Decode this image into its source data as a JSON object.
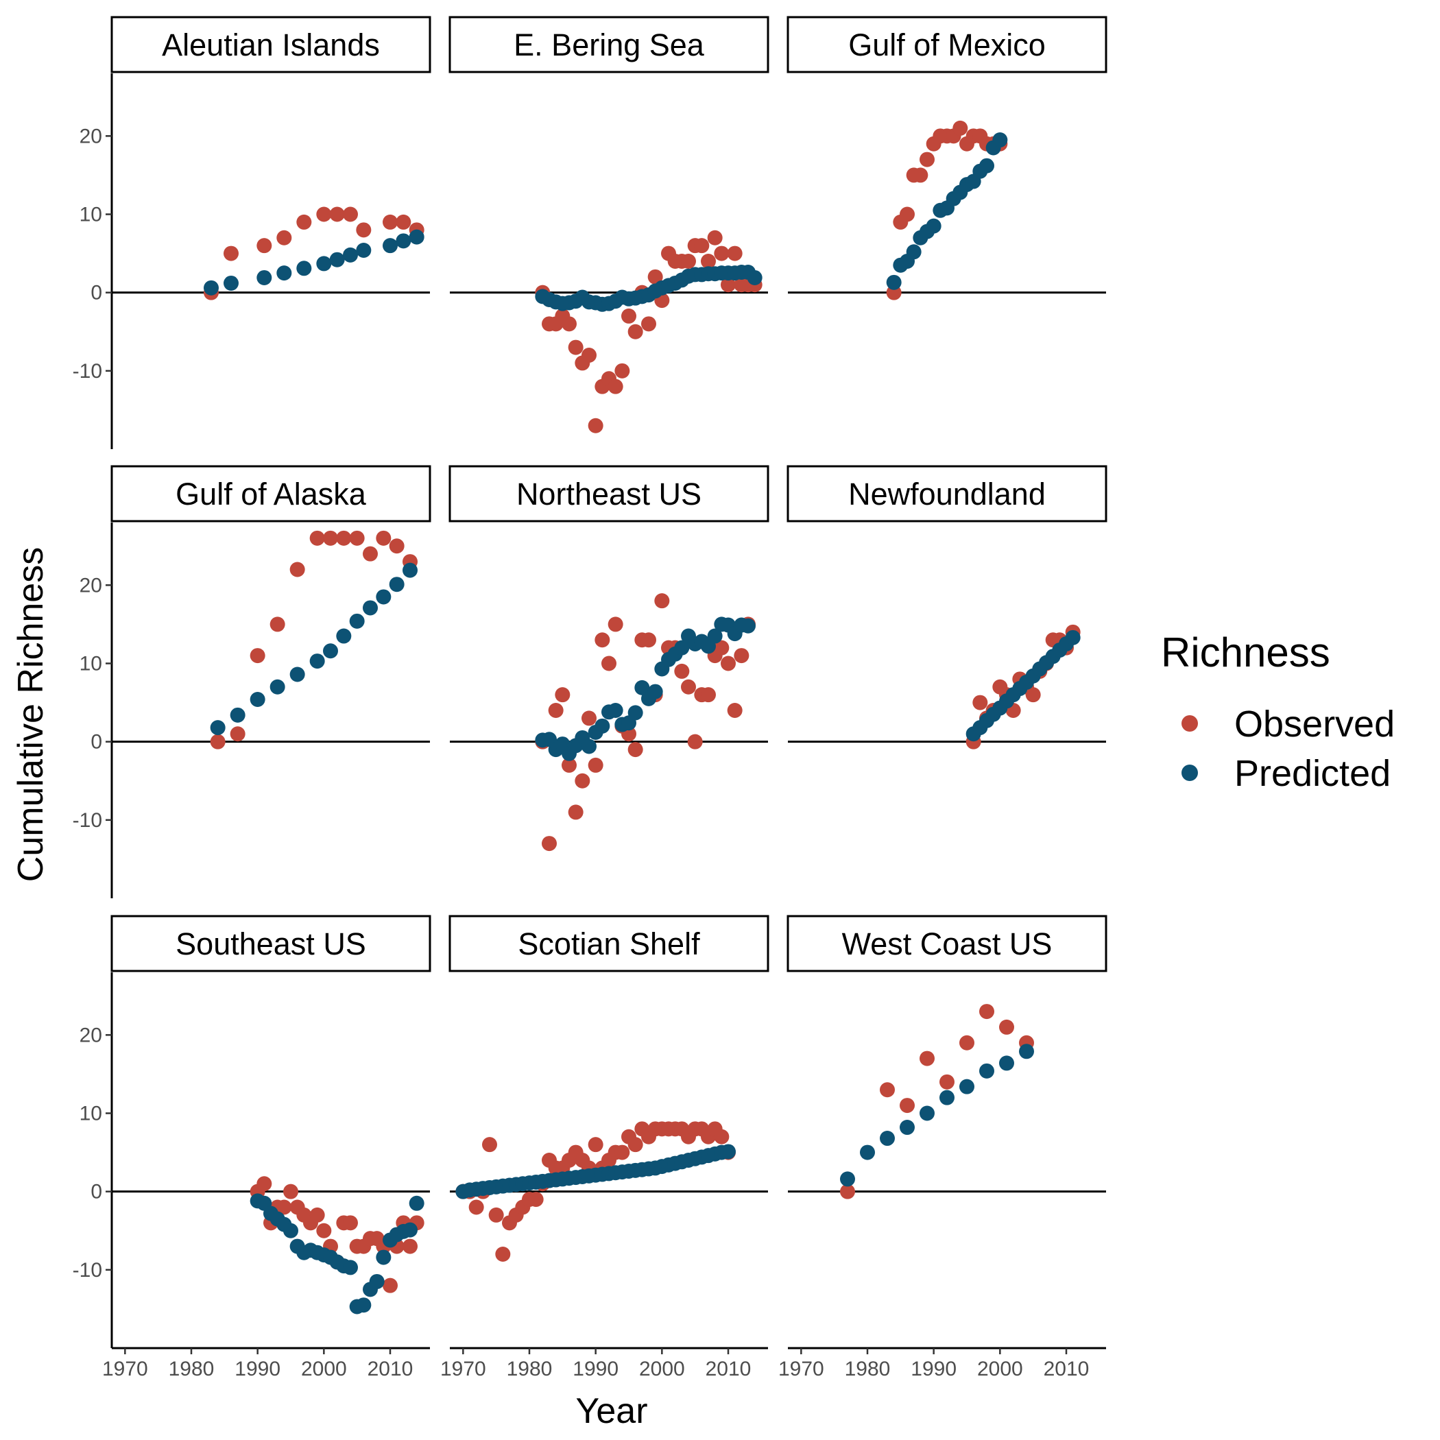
{
  "chart_data": {
    "type": "scatter",
    "title": "",
    "xlabel": "Year",
    "ylabel": "Cumulative Richness",
    "xlim": [
      1968,
      2016
    ],
    "ylim": [
      -20,
      28
    ],
    "x_ticks": [
      1970,
      1980,
      1990,
      2000,
      2010
    ],
    "y_ticks": [
      -10,
      0,
      10,
      20
    ],
    "grid": false,
    "legend": {
      "title": "Richness",
      "position": "right",
      "entries": [
        {
          "name": "Observed",
          "color": "#C0473A"
        },
        {
          "name": "Predicted",
          "color": "#0D5274"
        }
      ]
    },
    "reference_line_y": 0,
    "facets": [
      {
        "label": "Aleutian Islands",
        "observed": {
          "x": [
            1983,
            1986,
            1991,
            1994,
            1997,
            2000,
            2002,
            2004,
            2006,
            2010,
            2012,
            2014
          ],
          "y": [
            0,
            5,
            6,
            7,
            9,
            10,
            10,
            10,
            8,
            9,
            9,
            8
          ]
        },
        "predicted": {
          "x": [
            1983,
            1986,
            1991,
            1994,
            1997,
            2000,
            2002,
            2004,
            2006,
            2010,
            2012,
            2014
          ],
          "y": [
            0.6,
            1.2,
            1.9,
            2.5,
            3.1,
            3.7,
            4.2,
            4.8,
            5.4,
            6.0,
            6.6,
            7.1
          ]
        }
      },
      {
        "label": "E. Bering Sea",
        "observed": {
          "x": [
            1982,
            1983,
            1984,
            1985,
            1986,
            1987,
            1988,
            1989,
            1990,
            1991,
            1992,
            1993,
            1994,
            1995,
            1996,
            1997,
            1998,
            1999,
            2000,
            2001,
            2002,
            2003,
            2004,
            2005,
            2006,
            2007,
            2008,
            2009,
            2010,
            2011,
            2012,
            2013,
            2014
          ],
          "y": [
            0,
            -4,
            -4,
            -3,
            -4,
            -7,
            -9,
            -8,
            -17,
            -12,
            -11,
            -12,
            -10,
            -3,
            -5,
            0,
            -4,
            2,
            -1,
            5,
            4,
            4,
            4,
            6,
            6,
            4,
            7,
            5,
            1,
            5,
            1,
            1,
            1
          ]
        },
        "predicted": {
          "x": [
            1982,
            1983,
            1984,
            1985,
            1986,
            1987,
            1988,
            1989,
            1990,
            1991,
            1992,
            1993,
            1994,
            1995,
            1996,
            1997,
            1998,
            1999,
            2000,
            2001,
            2002,
            2003,
            2004,
            2005,
            2006,
            2007,
            2008,
            2009,
            2010,
            2011,
            2012,
            2013,
            2014
          ],
          "y": [
            -0.5,
            -0.9,
            -1.2,
            -1.4,
            -1.3,
            -1.1,
            -0.6,
            -1.2,
            -1.3,
            -1.5,
            -1.4,
            -1.1,
            -0.6,
            -0.8,
            -0.7,
            -0.5,
            -0.3,
            0.2,
            0.6,
            0.9,
            1.2,
            1.6,
            2.1,
            2.3,
            2.3,
            2.4,
            2.4,
            2.5,
            2.5,
            2.5,
            2.6,
            2.6,
            1.9
          ]
        }
      },
      {
        "label": "Gulf of Mexico",
        "observed": {
          "x": [
            1984,
            1985,
            1986,
            1987,
            1988,
            1989,
            1990,
            1991,
            1992,
            1993,
            1994,
            1995,
            1996,
            1997,
            1998,
            1999,
            2000
          ],
          "y": [
            0,
            9,
            10,
            15,
            15,
            17,
            19,
            20,
            20,
            20,
            21,
            19,
            20,
            20,
            19,
            19,
            19
          ]
        },
        "predicted": {
          "x": [
            1984,
            1985,
            1986,
            1987,
            1988,
            1989,
            1990,
            1991,
            1992,
            1993,
            1994,
            1995,
            1996,
            1997,
            1998,
            1999,
            2000
          ],
          "y": [
            1.3,
            3.5,
            4.0,
            5.2,
            7.0,
            7.8,
            8.5,
            10.5,
            10.8,
            12.0,
            12.8,
            13.8,
            14.2,
            15.5,
            16.2,
            18.5,
            19.5
          ]
        }
      },
      {
        "label": "Gulf of Alaska",
        "observed": {
          "x": [
            1984,
            1987,
            1990,
            1993,
            1996,
            1999,
            2001,
            2003,
            2005,
            2007,
            2009,
            2011,
            2013
          ],
          "y": [
            0,
            1,
            11,
            15,
            22,
            26,
            26,
            26,
            26,
            24,
            26,
            25,
            23
          ]
        },
        "predicted": {
          "x": [
            1984,
            1987,
            1990,
            1993,
            1996,
            1999,
            2001,
            2003,
            2005,
            2007,
            2009,
            2011,
            2013
          ],
          "y": [
            1.8,
            3.4,
            5.4,
            7.0,
            8.6,
            10.3,
            11.6,
            13.5,
            15.4,
            17.1,
            18.5,
            20.1,
            21.9
          ]
        }
      },
      {
        "label": "Northeast US",
        "observed": {
          "x": [
            1982,
            1983,
            1984,
            1985,
            1986,
            1987,
            1988,
            1989,
            1990,
            1991,
            1992,
            1993,
            1994,
            1995,
            1996,
            1997,
            1998,
            1999,
            2000,
            2001,
            2002,
            2003,
            2004,
            2005,
            2006,
            2007,
            2008,
            2009,
            2010,
            2011,
            2012,
            2013
          ],
          "y": [
            0,
            -13,
            4,
            6,
            -3,
            -9,
            -5,
            3,
            -3,
            13,
            10,
            15,
            2,
            1,
            -1,
            13,
            13,
            6,
            18,
            12,
            12,
            9,
            7,
            0,
            6,
            6,
            11,
            12,
            10,
            4,
            11,
            15
          ]
        },
        "predicted": {
          "x": [
            1982,
            1983,
            1984,
            1985,
            1986,
            1987,
            1988,
            1989,
            1990,
            1991,
            1992,
            1993,
            1994,
            1995,
            1996,
            1997,
            1998,
            1999,
            2000,
            2001,
            2002,
            2003,
            2004,
            2005,
            2006,
            2007,
            2008,
            2009,
            2010,
            2011,
            2012,
            2013
          ],
          "y": [
            0.2,
            0.3,
            -1.0,
            -0.3,
            -1.5,
            -0.5,
            0.5,
            -0.6,
            1.2,
            2.0,
            3.8,
            4.0,
            2.2,
            2.4,
            3.7,
            6.9,
            5.5,
            6.4,
            9.3,
            10.5,
            11.2,
            12.0,
            13.5,
            12.5,
            12.8,
            12.2,
            13.5,
            15.0,
            14.9,
            13.8,
            14.9,
            14.8
          ]
        }
      },
      {
        "label": "Newfoundland",
        "observed": {
          "x": [
            1996,
            1997,
            1998,
            1999,
            2000,
            2001,
            2002,
            2003,
            2004,
            2005,
            2006,
            2007,
            2008,
            2009,
            2010,
            2011
          ],
          "y": [
            0,
            5,
            3,
            4,
            7,
            6,
            4,
            8,
            7,
            6,
            9,
            10,
            13,
            13,
            12,
            14
          ]
        },
        "predicted": {
          "x": [
            1996,
            1997,
            1998,
            1999,
            2000,
            2001,
            2002,
            2003,
            2004,
            2005,
            2006,
            2007,
            2008,
            2009,
            2010,
            2011
          ],
          "y": [
            1.0,
            1.8,
            2.7,
            3.5,
            4.3,
            5.2,
            6.0,
            6.8,
            7.6,
            8.4,
            9.3,
            10.1,
            10.9,
            11.7,
            12.5,
            13.3
          ]
        }
      },
      {
        "label": "Southeast US",
        "observed": {
          "x": [
            1990,
            1991,
            1992,
            1993,
            1994,
            1995,
            1996,
            1997,
            1998,
            1999,
            2000,
            2001,
            2002,
            2003,
            2004,
            2005,
            2006,
            2007,
            2008,
            2009,
            2010,
            2011,
            2012,
            2013,
            2014
          ],
          "y": [
            0,
            1,
            -4,
            -2,
            -2,
            0,
            -2,
            -3,
            -4,
            -3,
            -5,
            -7,
            -9,
            -4,
            -4,
            -7,
            -7,
            -6,
            -6,
            -7,
            -12,
            -7,
            -4,
            -7,
            -4
          ]
        },
        "predicted": {
          "x": [
            1990,
            1991,
            1992,
            1993,
            1994,
            1995,
            1996,
            1997,
            1998,
            1999,
            2000,
            2001,
            2002,
            2003,
            2004,
            2005,
            2006,
            2007,
            2008,
            2009,
            2010,
            2011,
            2012,
            2013,
            2014
          ],
          "y": [
            -1.2,
            -1.5,
            -2.8,
            -3.5,
            -4.2,
            -5.0,
            -7.0,
            -7.8,
            -7.5,
            -7.8,
            -8.1,
            -8.4,
            -9.0,
            -9.5,
            -9.7,
            -14.7,
            -14.5,
            -12.5,
            -11.5,
            -8.4,
            -6.2,
            -5.5,
            -5.1,
            -4.9,
            -1.5
          ]
        }
      },
      {
        "label": "Scotian Shelf",
        "observed": {
          "x": [
            1970,
            1971,
            1972,
            1973,
            1974,
            1975,
            1976,
            1977,
            1978,
            1979,
            1980,
            1981,
            1982,
            1983,
            1984,
            1985,
            1986,
            1987,
            1988,
            1989,
            1990,
            1991,
            1992,
            1993,
            1994,
            1995,
            1996,
            1997,
            1998,
            1999,
            2000,
            2001,
            2002,
            2003,
            2004,
            2005,
            2006,
            2007,
            2008,
            2009,
            2010
          ],
          "y": [
            0,
            0,
            -2,
            0,
            6,
            -3,
            -8,
            -4,
            -3,
            -2,
            -1,
            -1,
            1,
            4,
            3,
            3,
            4,
            5,
            4,
            3,
            6,
            3,
            4,
            5,
            5,
            7,
            6,
            8,
            7,
            8,
            8,
            8,
            8,
            8,
            7,
            8,
            8,
            7,
            8,
            7,
            5
          ]
        },
        "predicted": {
          "x": [
            1970,
            1971,
            1972,
            1973,
            1974,
            1975,
            1976,
            1977,
            1978,
            1979,
            1980,
            1981,
            1982,
            1983,
            1984,
            1985,
            1986,
            1987,
            1988,
            1989,
            1990,
            1991,
            1992,
            1993,
            1994,
            1995,
            1996,
            1997,
            1998,
            1999,
            2000,
            2001,
            2002,
            2003,
            2004,
            2005,
            2006,
            2007,
            2008,
            2009,
            2010
          ],
          "y": [
            0.0,
            0.2,
            0.3,
            0.4,
            0.5,
            0.6,
            0.7,
            0.8,
            0.9,
            1.0,
            1.1,
            1.2,
            1.3,
            1.4,
            1.5,
            1.6,
            1.7,
            1.8,
            1.9,
            2.0,
            2.1,
            2.2,
            2.3,
            2.4,
            2.5,
            2.6,
            2.7,
            2.8,
            2.9,
            3.0,
            3.2,
            3.4,
            3.6,
            3.8,
            4.0,
            4.2,
            4.4,
            4.6,
            4.8,
            5.0,
            5.1
          ]
        }
      },
      {
        "label": "West Coast US",
        "observed": {
          "x": [
            1977,
            1983,
            1986,
            1989,
            1992,
            1995,
            1998,
            2001,
            2004
          ],
          "y": [
            0,
            13,
            11,
            17,
            14,
            19,
            23,
            21,
            19
          ]
        },
        "predicted": {
          "x": [
            1977,
            1980,
            1983,
            1986,
            1989,
            1992,
            1995,
            1998,
            2001,
            2004
          ],
          "y": [
            1.6,
            5.0,
            6.8,
            8.2,
            10.0,
            12.0,
            13.4,
            15.4,
            16.4,
            17.9
          ]
        }
      }
    ]
  }
}
